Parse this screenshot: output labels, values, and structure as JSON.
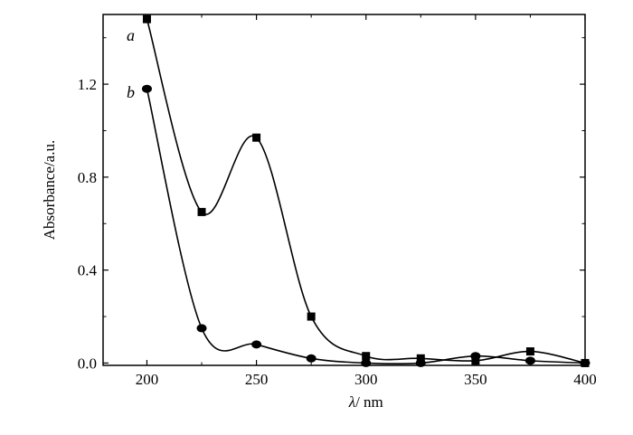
{
  "chart_data": {
    "type": "line",
    "title": "",
    "xlabel_symbol": "λ",
    "xlabel_unit": "/ nm",
    "ylabel": "Absorbance/a.u.",
    "xlim": [
      180,
      400
    ],
    "ylim": [
      -0.01,
      1.5
    ],
    "x_ticks": [
      200,
      250,
      300,
      350,
      400
    ],
    "y_ticks": [
      0.0,
      0.4,
      0.8,
      1.2
    ],
    "x_tick_labels": [
      "200",
      "250",
      "300",
      "350",
      "400"
    ],
    "y_tick_labels": [
      "0.0",
      "0.4",
      "0.8",
      "1.2"
    ],
    "grid": false,
    "series": [
      {
        "name": "a",
        "marker": "square",
        "color": "#000000",
        "x": [
          200,
          225,
          250,
          275,
          300,
          325,
          350,
          375,
          400
        ],
        "y": [
          1.48,
          0.65,
          0.97,
          0.2,
          0.03,
          0.02,
          0.01,
          0.05,
          0.0
        ]
      },
      {
        "name": "b",
        "marker": "circle",
        "color": "#000000",
        "x": [
          200,
          225,
          250,
          275,
          300,
          325,
          350,
          375,
          400
        ],
        "y": [
          1.18,
          0.15,
          0.08,
          0.02,
          0.0,
          0.0,
          0.03,
          0.01,
          0.0
        ]
      }
    ]
  }
}
